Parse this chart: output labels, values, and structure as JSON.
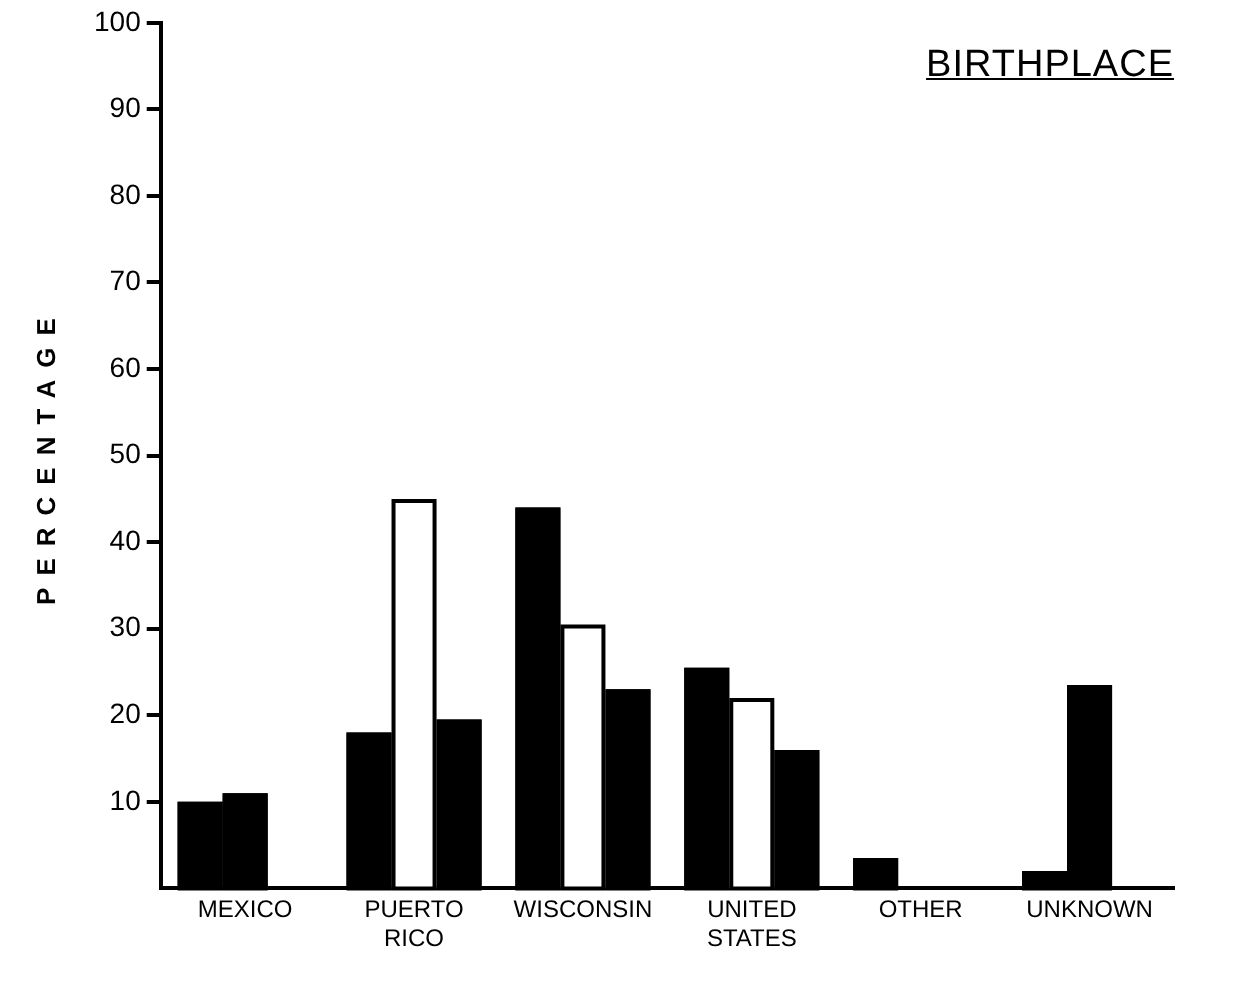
{
  "chart_data": {
    "type": "bar",
    "title": "BIRTHPLACE",
    "ylabel": "PERCENTAGE",
    "categories": [
      "MEXICO",
      "PUERTO RICO",
      "WISCONSIN",
      "UNITED STATES",
      "OTHER",
      "UNKNOWN"
    ],
    "series": [
      {
        "color": "#000000",
        "values": [
          10,
          18,
          44,
          25.5,
          3.5,
          2
        ]
      },
      {
        "colors": [
          "#000000",
          "#ffffff",
          "#ffffff",
          "#ffffff",
          "#ffffff",
          "#000000"
        ],
        "values": [
          11,
          45,
          30.5,
          22,
          null,
          23.5
        ]
      },
      {
        "color": "#000000",
        "values": [
          null,
          19.5,
          23,
          16,
          null,
          null
        ]
      }
    ],
    "ylim": [
      0,
      100
    ],
    "yticks": [
      10,
      20,
      30,
      40,
      50,
      60,
      70,
      80,
      90,
      100
    ],
    "grid": false,
    "legend": false
  }
}
